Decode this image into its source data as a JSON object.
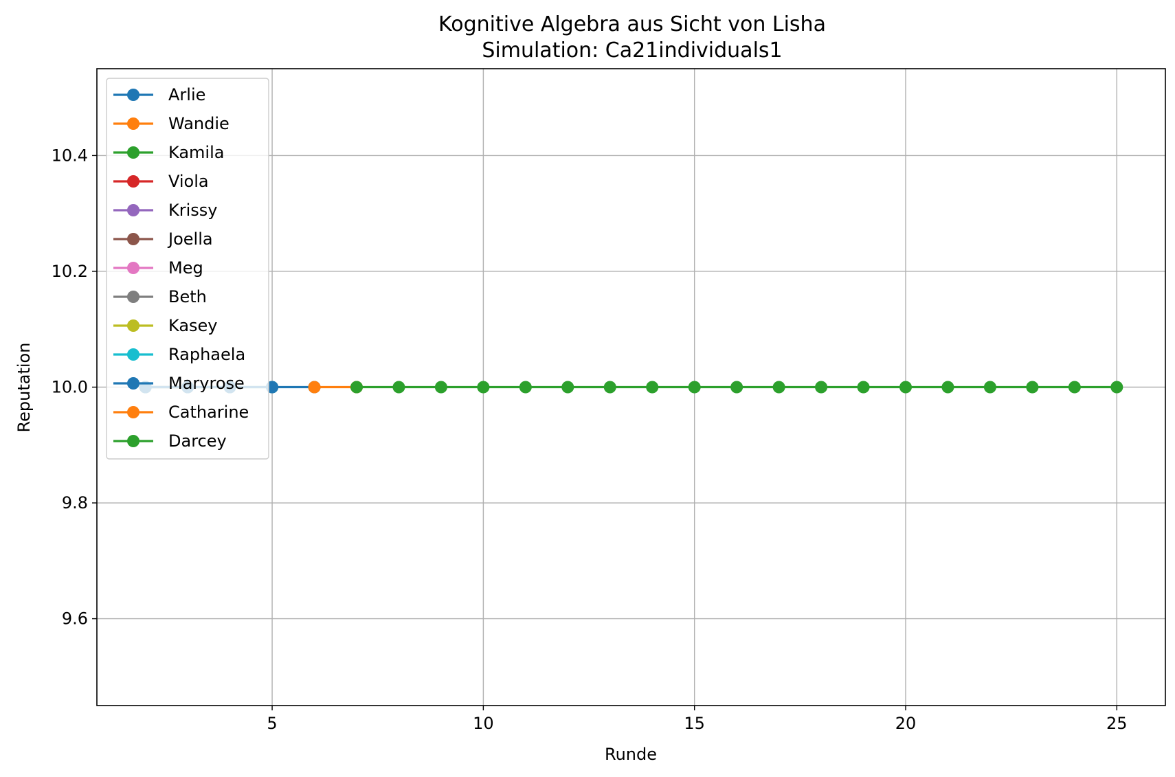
{
  "chart_data": {
    "type": "line",
    "title": "Kognitive Algebra aus Sicht von Lisha",
    "subtitle": "Simulation: Ca21individuals1",
    "xlabel": "Runde",
    "ylabel": "Reputation",
    "xlim": [
      0.85,
      26.15
    ],
    "ylim": [
      9.45,
      10.55
    ],
    "xticks": [
      5,
      10,
      15,
      20,
      25
    ],
    "yticks": [
      9.6,
      9.8,
      10.0,
      10.2,
      10.4
    ],
    "ytick_labels": [
      "9.6",
      "9.8",
      "10.0",
      "10.2",
      "10.4"
    ],
    "grid": true,
    "legend_position": "upper-left",
    "series": [
      {
        "name": "Arlie",
        "color": "#1f77b4",
        "x": [],
        "y": []
      },
      {
        "name": "Wandie",
        "color": "#ff7f0e",
        "x": [],
        "y": []
      },
      {
        "name": "Kamila",
        "color": "#2ca02c",
        "x": [],
        "y": []
      },
      {
        "name": "Viola",
        "color": "#d62728",
        "x": [],
        "y": []
      },
      {
        "name": "Krissy",
        "color": "#9467bd",
        "x": [],
        "y": []
      },
      {
        "name": "Joella",
        "color": "#8c564b",
        "x": [
          2,
          3
        ],
        "y": [
          10.0,
          10.0
        ]
      },
      {
        "name": "Meg",
        "color": "#e377c2",
        "x": [
          2,
          3
        ],
        "y": [
          10.0,
          10.0
        ]
      },
      {
        "name": "Beth",
        "color": "#7f7f7f",
        "x": [
          2,
          3,
          4
        ],
        "y": [
          10.0,
          10.0,
          10.0
        ]
      },
      {
        "name": "Kasey",
        "color": "#bcbd22",
        "x": [
          2,
          3,
          4,
          5
        ],
        "y": [
          10.0,
          10.0,
          10.0,
          10.0
        ]
      },
      {
        "name": "Raphaela",
        "color": "#17becf",
        "x": [
          2,
          3,
          4,
          5
        ],
        "y": [
          10.0,
          10.0,
          10.0,
          10.0
        ]
      },
      {
        "name": "Maryrose",
        "color": "#1f77b4",
        "x": [
          2,
          3,
          4,
          5,
          6
        ],
        "y": [
          10.0,
          10.0,
          10.0,
          10.0,
          10.0
        ]
      },
      {
        "name": "Catharine",
        "color": "#ff7f0e",
        "x": [
          6,
          7
        ],
        "y": [
          10.0,
          10.0
        ]
      },
      {
        "name": "Darcey",
        "color": "#2ca02c",
        "x": [
          7,
          8,
          9,
          10,
          11,
          12,
          13,
          14,
          15,
          16,
          17,
          18,
          19,
          20,
          21,
          22,
          23,
          24,
          25
        ],
        "y": [
          10.0,
          10.0,
          10.0,
          10.0,
          10.0,
          10.0,
          10.0,
          10.0,
          10.0,
          10.0,
          10.0,
          10.0,
          10.0,
          10.0,
          10.0,
          10.0,
          10.0,
          10.0,
          10.0
        ]
      }
    ]
  }
}
